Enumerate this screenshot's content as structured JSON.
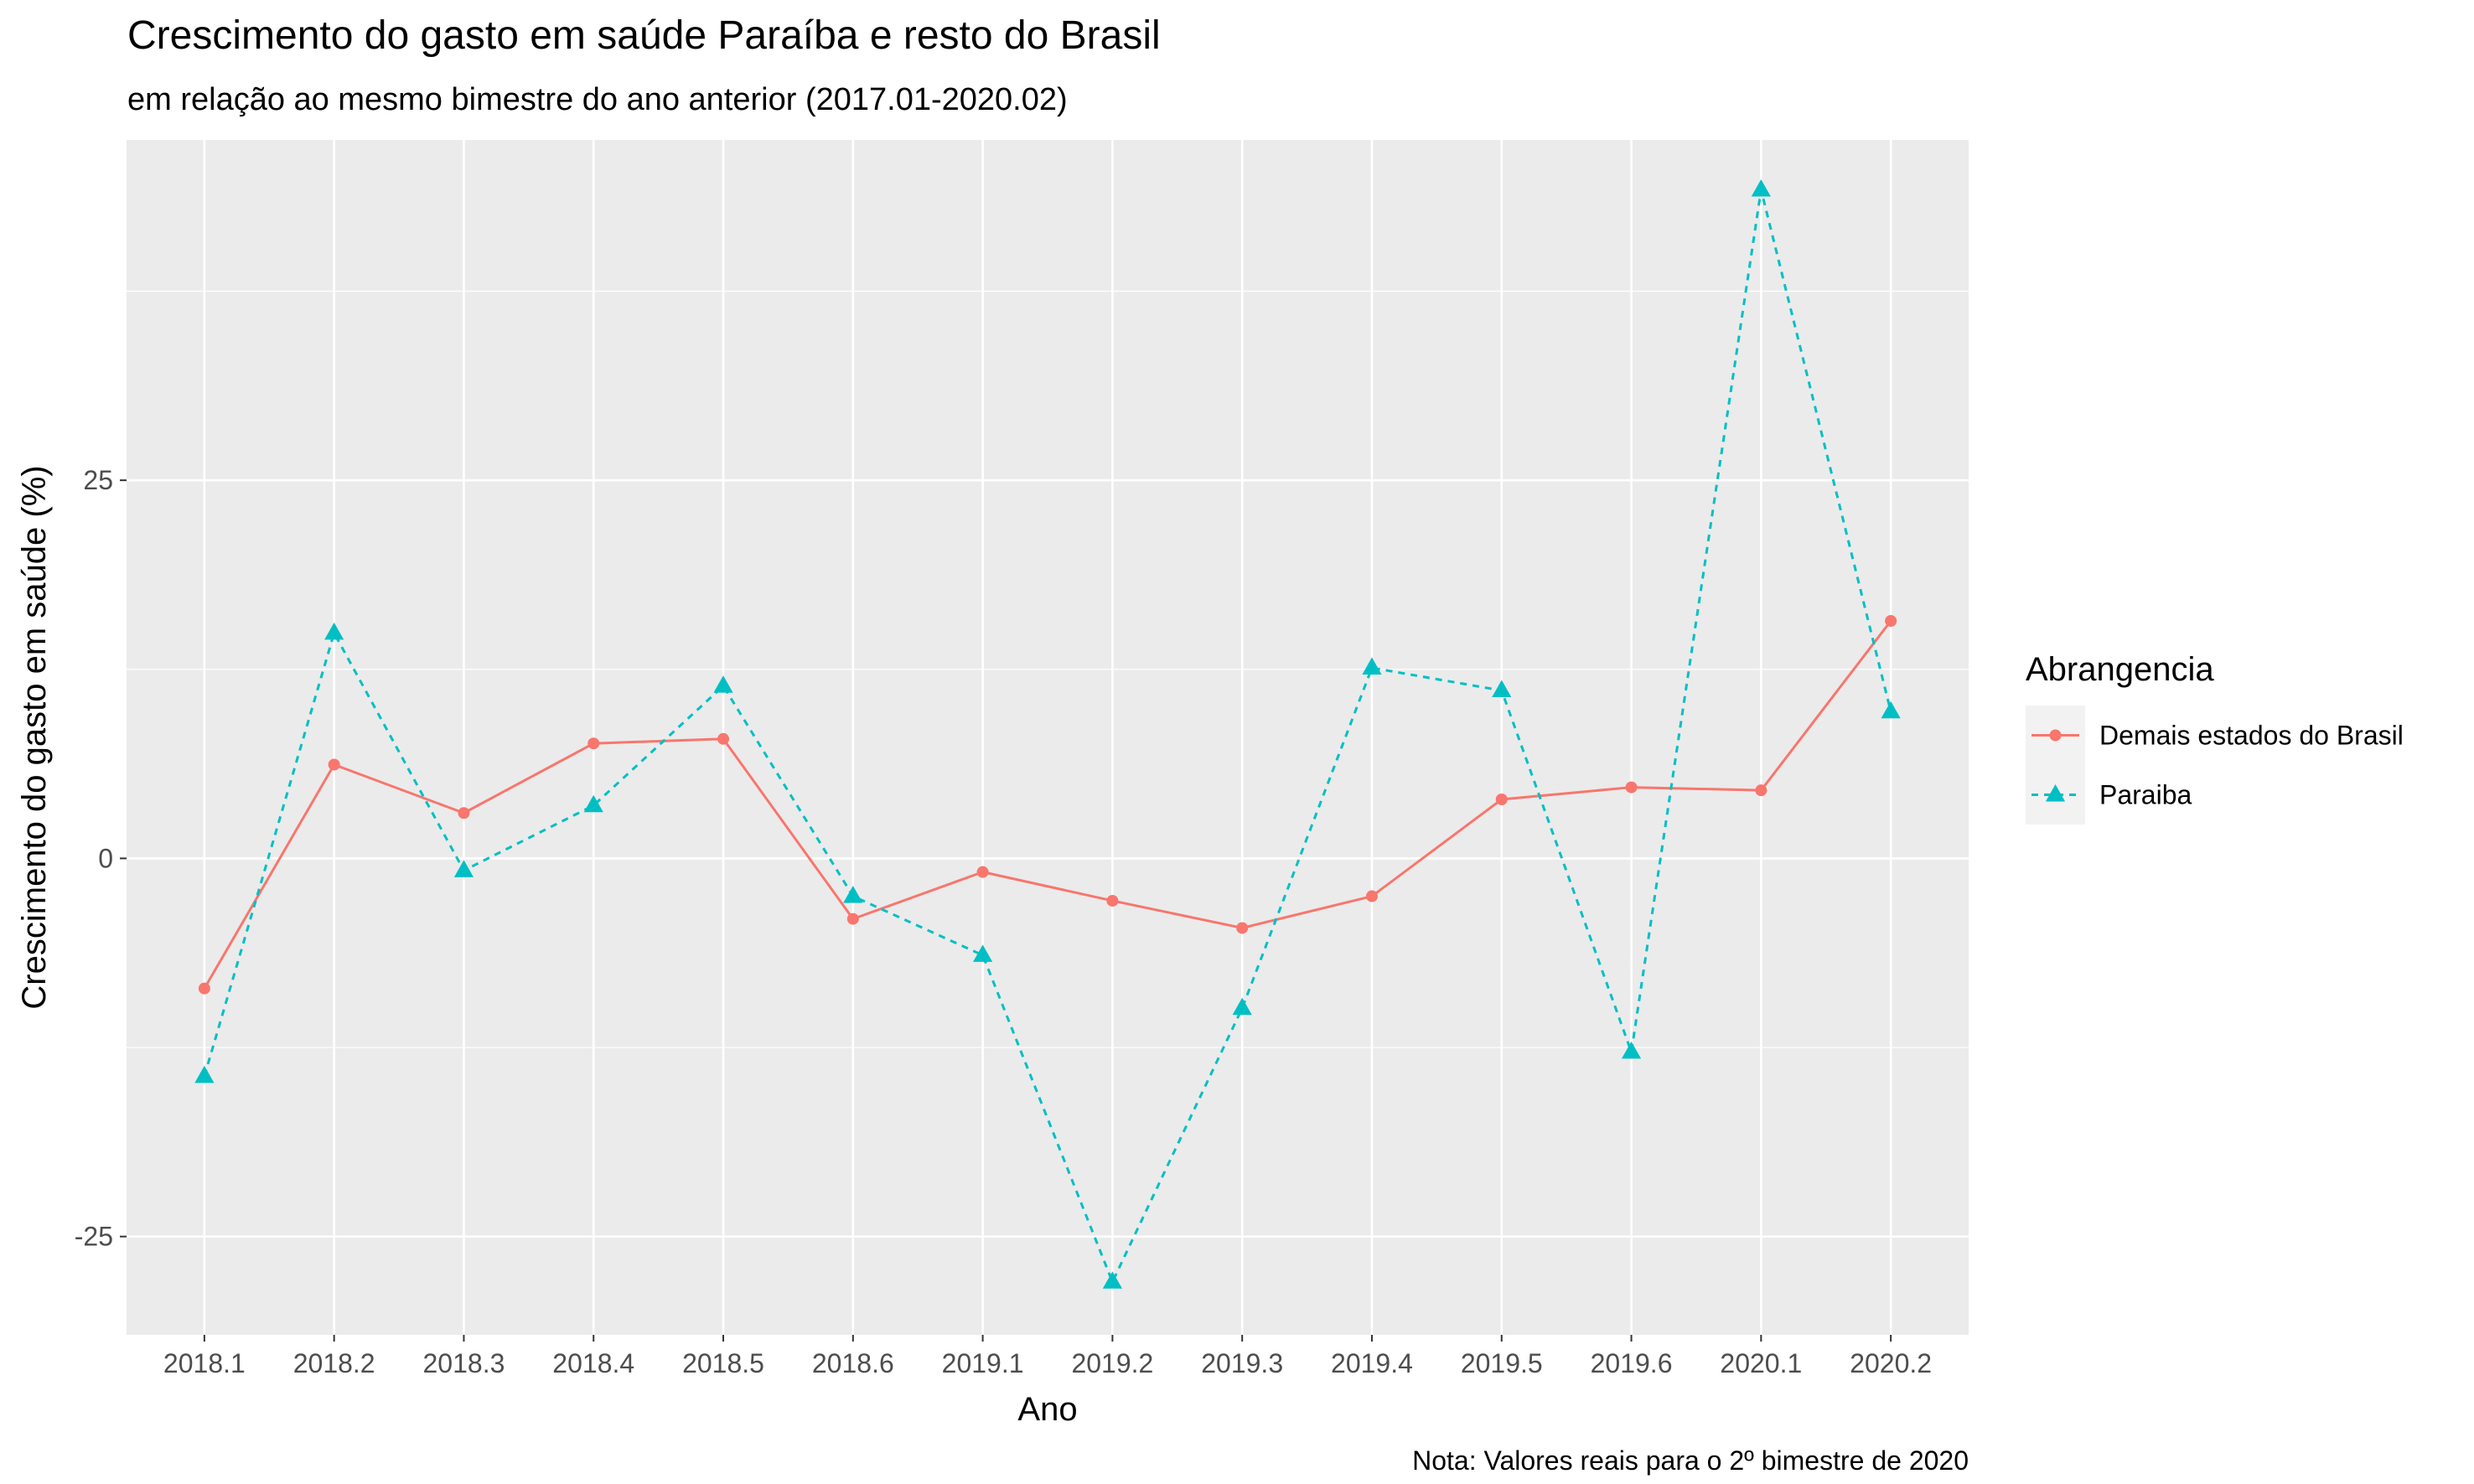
{
  "chart_data": {
    "type": "line",
    "title": "Crescimento do gasto em saúde Paraíba e resto do Brasil",
    "subtitle": "em relação ao mesmo bimestre do ano anterior (2017.01-2020.02)",
    "xlabel": "Ano",
    "ylabel": "Crescimento do gasto em saúde (%)",
    "caption": "Nota: Valores reais para o 2º bimestre de 2020",
    "categories": [
      "2018.1",
      "2018.2",
      "2018.3",
      "2018.4",
      "2018.5",
      "2018.6",
      "2019.1",
      "2019.2",
      "2019.3",
      "2019.4",
      "2019.5",
      "2019.6",
      "2020.1",
      "2020.2"
    ],
    "ylim": [
      -31.5,
      47.5
    ],
    "yticks": [
      -25,
      0,
      25
    ],
    "ytick_labels": [
      "-25",
      "0",
      "25"
    ],
    "grid": true,
    "panel_background": "#EBEBEB",
    "legend": {
      "title": "Abrangencia",
      "position": "right"
    },
    "series": [
      {
        "name": "Demais estados do Brasil",
        "color": "#F8766D",
        "line": "solid",
        "marker": "circle",
        "values": [
          -8.6,
          6.2,
          3.0,
          7.6,
          7.9,
          -4.0,
          -0.9,
          -2.8,
          -4.6,
          -2.5,
          3.9,
          4.7,
          4.5,
          15.7
        ]
      },
      {
        "name": "Paraiba",
        "color": "#00BFC4",
        "line": "dashed",
        "marker": "triangle",
        "values": [
          -14.4,
          14.9,
          -0.8,
          3.5,
          11.4,
          -2.5,
          -6.4,
          -28.0,
          -9.9,
          12.6,
          11.1,
          -12.8,
          44.2,
          9.7
        ]
      }
    ]
  }
}
